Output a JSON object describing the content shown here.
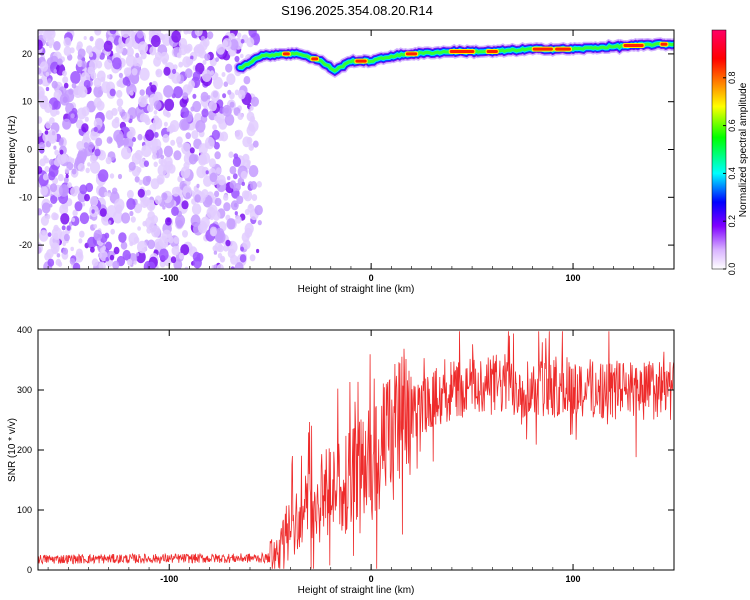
{
  "title": "S196.2025.354.08.20.R14",
  "chart_data": [
    {
      "type": "heatmap",
      "name": "spectrogram",
      "xlabel": "Height of straight line (km)",
      "ylabel": "Frequency (Hz)",
      "xlim": [
        -165,
        150
      ],
      "ylim": [
        -25,
        25
      ],
      "xticks": [
        -100,
        0,
        100
      ],
      "yticks": [
        -20,
        -10,
        0,
        10,
        20
      ],
      "colorbar": {
        "label": "Normalized spectral amplitude",
        "range": [
          0,
          1
        ],
        "ticks": [
          0.0,
          0.2,
          0.4,
          0.6,
          0.8
        ],
        "colors": [
          "#ffffff",
          "#d9b3ff",
          "#8000ff",
          "#0000ff",
          "#00ffff",
          "#00ff00",
          "#ffff00",
          "#ff8000",
          "#ff0000",
          "#ff0066"
        ]
      },
      "carrier_trace": {
        "x": [
          -65,
          -55,
          -45,
          -35,
          -25,
          -18,
          -10,
          0,
          10,
          20,
          40,
          60,
          80,
          100,
          120,
          140,
          150
        ],
        "freq_hz": [
          17,
          19.5,
          20,
          20,
          18.5,
          16.5,
          18.5,
          18.5,
          19.5,
          20,
          20.5,
          20.5,
          21,
          21,
          21.5,
          22,
          22
        ]
      },
      "noise_region": {
        "x_start": -165,
        "x_end": -60,
        "freq_min": -25,
        "freq_max": 25
      }
    },
    {
      "type": "line",
      "name": "snr",
      "xlabel": "Height of straight line (km)",
      "ylabel": "SNR (10 * v/v)",
      "xlim": [
        -165,
        150
      ],
      "ylim": [
        0,
        400
      ],
      "xticks": [
        -100,
        0,
        100
      ],
      "yticks": [
        0,
        100,
        200,
        300,
        400
      ],
      "color": "#ee2b2b",
      "profile": {
        "x": [
          -165,
          -50,
          -45,
          -40,
          -35,
          -30,
          -20,
          -10,
          0,
          10,
          20,
          30,
          40,
          60,
          80,
          100,
          120,
          150
        ],
        "y": [
          18,
          20,
          40,
          70,
          90,
          110,
          130,
          150,
          180,
          220,
          260,
          285,
          300,
          310,
          305,
          305,
          300,
          300
        ]
      }
    }
  ]
}
